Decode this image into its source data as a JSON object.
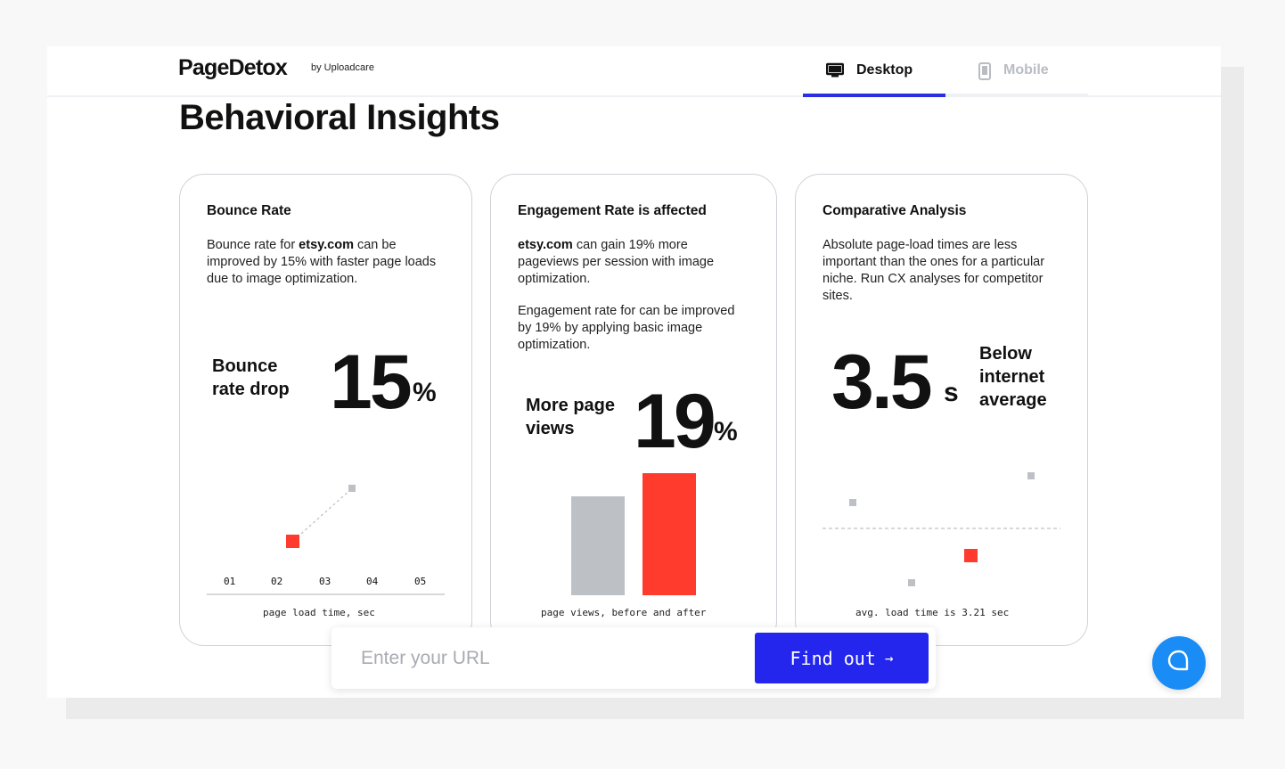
{
  "brand": {
    "logo": "PageDetox",
    "byline": "by Uploadcare"
  },
  "tabs": [
    {
      "label": "Desktop",
      "icon": "desktop-icon",
      "active": true
    },
    {
      "label": "Mobile",
      "icon": "mobile-icon",
      "active": false
    }
  ],
  "page": {
    "title": "Behavioral Insights"
  },
  "cards": {
    "bounce": {
      "title": "Bounce Rate",
      "text_pre": "Bounce rate for ",
      "text_site": "etsy.com",
      "text_post": " can be improved by 15% with faster page loads due to image optimization.",
      "metric_label_1": "Bounce",
      "metric_label_2": "rate drop",
      "metric_value": "15",
      "metric_unit": "%",
      "caption": "page load time, sec"
    },
    "engagement": {
      "title": "Engagement Rate is affected",
      "text_site": "etsy.com",
      "text_post": " can gain 19% more pageviews per session with image optimization.",
      "text_2": "Engagement rate for can be improved by 19% by applying basic image optimization.",
      "metric_label_1": "More page",
      "metric_label_2": "views",
      "metric_value": "19",
      "metric_unit": "%",
      "caption": "page views, before and after"
    },
    "comparative": {
      "title": "Comparative Analysis",
      "text": "Absolute page-load times are less important than the ones for a particular niche. Run CX analyses for competitor sites.",
      "metric_value": "3.5",
      "metric_unit": "s",
      "metric_label_1": "Below",
      "metric_label_2": "internet",
      "metric_label_3": "average",
      "caption": "avg. load time is 3.21 sec"
    }
  },
  "chart_data": [
    {
      "type": "scatter",
      "x": [
        "02",
        "04"
      ],
      "categories": [
        "01",
        "02",
        "03",
        "04",
        "05"
      ],
      "y_relative": [
        0,
        1
      ],
      "highlight_index": 0,
      "xlabel": "page load time, sec"
    },
    {
      "type": "bar",
      "categories": [
        "before",
        "after"
      ],
      "values": [
        100,
        119
      ],
      "xlabel": "page views, before and after"
    },
    {
      "type": "scatter",
      "points": [
        {
          "level": "above",
          "highlight": false
        },
        {
          "level": "below",
          "highlight": false
        },
        {
          "level": "below",
          "highlight": true
        },
        {
          "level": "above",
          "highlight": false
        }
      ],
      "reference_line": "3.21",
      "xlabel": "avg. load time is 3.21 sec"
    }
  ],
  "search": {
    "placeholder": "Enter your URL",
    "button_label": "Find out",
    "button_icon": "arrow-right-icon"
  },
  "colors": {
    "accent": "#2426ee",
    "highlight": "#ff3b2e",
    "muted": "#bdc1c6",
    "chat": "#1a8cf5"
  }
}
